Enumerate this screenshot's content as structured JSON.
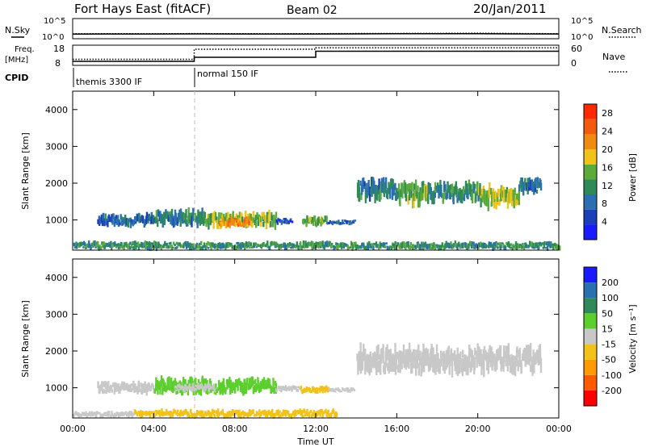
{
  "header": {
    "station": "Fort Hays East (fitACF)",
    "beam": "Beam 02",
    "date": "20/Jan/2011"
  },
  "strip_labels": {
    "nsky": "N.Sky",
    "nsearch": "N.Search",
    "freq_line1": "Freq.",
    "freq_line2": "[MHz]",
    "nave": "Nave",
    "cpid": "CPID",
    "nsky_tick_top": "10^5",
    "nsky_tick_bottom": "10^0",
    "nsearch_tick_top": "10^5",
    "nsearch_tick_bottom": "10^0",
    "freq_tick_top": "18",
    "freq_tick_bottom": "8",
    "nave_tick_top": "60",
    "nave_tick_bottom": "0"
  },
  "cpid_segments": [
    {
      "label": "themis 3300 IF",
      "start_hour": 0
    },
    {
      "label": "normal 150 IF",
      "start_hour": 6
    }
  ],
  "colors": {
    "power": [
      "#1a1aff",
      "#1a3fb8",
      "#2a6fb0",
      "#2e8b57",
      "#5aaa3c",
      "#f2c21a",
      "#f08a10",
      "#f25a0c",
      "#ff2a00"
    ],
    "velocity": [
      "#ff0000",
      "#ff5a00",
      "#ff9900",
      "#f2c21a",
      "#c8c8c8",
      "#5ccf2e",
      "#2e8b57",
      "#2a6fb0",
      "#1a1aff"
    ],
    "frame": "#000000"
  },
  "chart_data": [
    {
      "type": "line",
      "title": "N.Sky / N.Search",
      "xlabel": "Time UT",
      "x": [
        0,
        2,
        4,
        6,
        8,
        10,
        12,
        14,
        16,
        18,
        20,
        22,
        24
      ],
      "series": [
        {
          "name": "N.Sky",
          "values": [
            14,
            15,
            15,
            16,
            15,
            15,
            15,
            16,
            17,
            17,
            18,
            16,
            15
          ]
        },
        {
          "name": "N.Search",
          "values": [
            18,
            20,
            19,
            21,
            20,
            19,
            20,
            22,
            23,
            24,
            26,
            22,
            20
          ]
        }
      ],
      "ylim": [
        1,
        100000
      ],
      "y_scale": "log"
    },
    {
      "type": "line",
      "xlabel": "Time UT",
      "x": [
        0,
        6,
        6.001,
        12,
        12.001,
        24
      ],
      "series": [
        {
          "name": "Freq.",
          "values": [
            10.0,
            10.0,
            12.0,
            12.0,
            15.0,
            15.0
          ]
        },
        {
          "name": "Nave",
          "values": [
            18,
            18,
            48,
            48,
            52,
            52
          ]
        }
      ],
      "ylim": [
        8,
        18
      ],
      "y2lim": [
        0,
        60
      ]
    },
    {
      "type": "heatmap",
      "xlabel": "Time UT",
      "ylabel": "Slant Range [km]",
      "x_range": [
        0,
        24
      ],
      "y_range": [
        180,
        4500
      ],
      "x_ticks": [
        "00:00",
        "04:00",
        "08:00",
        "12:00",
        "16:00",
        "20:00",
        "00:00"
      ],
      "y_ticks": [
        1000,
        2000,
        3000,
        4000
      ],
      "colorbar_label": "Power [dB]",
      "colorbar_ticks": [
        4,
        8,
        12,
        16,
        20,
        24,
        28
      ],
      "clim": [
        0,
        30
      ],
      "series": [
        {
          "t0": 1.2,
          "t1": 4.0,
          "r0": 850,
          "r1": 1150,
          "value": 8
        },
        {
          "t0": 4.0,
          "t1": 6.5,
          "r0": 850,
          "r1": 1250,
          "value": 10
        },
        {
          "t0": 6.5,
          "t1": 10.0,
          "r0": 800,
          "r1": 1200,
          "value": 16
        },
        {
          "t0": 7.2,
          "t1": 8.8,
          "r0": 800,
          "r1": 1050,
          "value": 22
        },
        {
          "t0": 10.0,
          "t1": 10.8,
          "r0": 900,
          "r1": 1050,
          "value": 6
        },
        {
          "t0": 11.3,
          "t1": 12.5,
          "r0": 850,
          "r1": 1100,
          "value": 14
        },
        {
          "t0": 12.5,
          "t1": 13.9,
          "r0": 880,
          "r1": 1000,
          "value": 7
        },
        {
          "t0": 14.0,
          "t1": 16.0,
          "r0": 1550,
          "r1": 2100,
          "value": 10
        },
        {
          "t0": 16.0,
          "t1": 17.5,
          "r0": 1400,
          "r1": 2000,
          "value": 14
        },
        {
          "t0": 17.5,
          "t1": 20.0,
          "r0": 1500,
          "r1": 2000,
          "value": 11
        },
        {
          "t0": 20.0,
          "t1": 22.0,
          "r0": 1350,
          "r1": 1900,
          "value": 16
        },
        {
          "t0": 22.0,
          "t1": 23.1,
          "r0": 1700,
          "r1": 2100,
          "value": 9
        },
        {
          "t0": 0.0,
          "t1": 24.0,
          "r0": 200,
          "r1": 400,
          "value": 12
        }
      ]
    },
    {
      "type": "heatmap",
      "xlabel": "Time UT",
      "ylabel": "Slant Range [km]",
      "x_range": [
        0,
        24
      ],
      "y_range": [
        180,
        4500
      ],
      "x_ticks": [
        "00:00",
        "04:00",
        "08:00",
        "12:00",
        "16:00",
        "20:00",
        "00:00"
      ],
      "y_ticks": [
        1000,
        2000,
        3000,
        4000
      ],
      "colorbar_label": "Velocity [m s⁻¹]",
      "colorbar_ticks": [
        -200,
        -100,
        -50,
        -15,
        15,
        50,
        100,
        200
      ],
      "series": [
        {
          "t0": 1.2,
          "t1": 4.0,
          "r0": 850,
          "r1": 1150,
          "value": 0
        },
        {
          "t0": 4.0,
          "t1": 10.0,
          "r0": 850,
          "r1": 1250,
          "value": 30
        },
        {
          "t0": 5.0,
          "t1": 7.0,
          "r0": 900,
          "r1": 1100,
          "value": 0
        },
        {
          "t0": 10.0,
          "t1": 11.2,
          "r0": 900,
          "r1": 1050,
          "value": 0
        },
        {
          "t0": 11.2,
          "t1": 12.6,
          "r0": 850,
          "r1": 1050,
          "value": -40
        },
        {
          "t0": 12.6,
          "t1": 13.9,
          "r0": 880,
          "r1": 1000,
          "value": 0
        },
        {
          "t0": 14.0,
          "t1": 23.1,
          "r0": 1400,
          "r1": 2100,
          "value": 0
        },
        {
          "t0": 3.0,
          "t1": 13.0,
          "r0": 200,
          "r1": 400,
          "value": -30
        },
        {
          "t0": 0.0,
          "t1": 3.0,
          "r0": 200,
          "r1": 350,
          "value": 0
        }
      ]
    }
  ],
  "footer": {
    "xlabel": "Time UT"
  }
}
